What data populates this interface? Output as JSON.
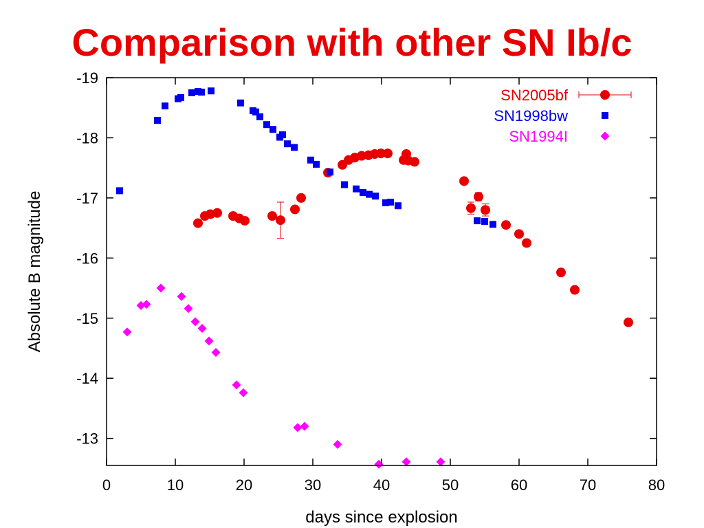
{
  "title": "Comparison with other SN Ib/c",
  "colors": {
    "title": "#e80000",
    "SN2005bf": "#e80000",
    "SN1998bw": "#0000ee",
    "SN1994I": "#ff00ff"
  },
  "chart_data": {
    "type": "scatter",
    "xlabel": "days since explosion",
    "ylabel": "Absolute B magnitude",
    "xlim": [
      0,
      80
    ],
    "ylim": [
      -12.55,
      -19
    ],
    "y_inverted": true,
    "xticks": [
      0,
      10,
      20,
      30,
      40,
      50,
      60,
      70,
      80
    ],
    "yticks": [
      -19,
      -18,
      -17,
      -16,
      -15,
      -14,
      -13
    ],
    "grid": false,
    "legend_position": "top-right",
    "series": [
      {
        "name": "SN2005bf",
        "marker": "circle",
        "color": "#e80000",
        "x": [
          13.3,
          14.3,
          15.1,
          16.1,
          18.4,
          19.3,
          20.1,
          24.1,
          25.3,
          27.4,
          28.3,
          32.2,
          34.3,
          35.2,
          36.1,
          37.1,
          38.1,
          39.0,
          39.9,
          40.9,
          43.2,
          43.6,
          43.9,
          44.8,
          52.0,
          53.0,
          54.1,
          55.1,
          58.1,
          60.0,
          61.1,
          66.1,
          68.1,
          75.9
        ],
        "y": [
          -16.58,
          -16.7,
          -16.73,
          -16.75,
          -16.7,
          -16.66,
          -16.62,
          -16.7,
          -16.63,
          -16.81,
          -17.0,
          -17.42,
          -17.55,
          -17.63,
          -17.67,
          -17.7,
          -17.71,
          -17.73,
          -17.74,
          -17.74,
          -17.63,
          -17.73,
          -17.62,
          -17.6,
          -17.28,
          -16.83,
          -17.02,
          -16.8,
          -16.55,
          -16.4,
          -16.25,
          -15.76,
          -15.47,
          -14.93
        ],
        "yerr": [
          0,
          0,
          0,
          0,
          0,
          0,
          0,
          0,
          0.3,
          0,
          0,
          0,
          0,
          0,
          0,
          0,
          0,
          0,
          0,
          0,
          0,
          0,
          0,
          0,
          0,
          0.1,
          0.07,
          0.1,
          0,
          0,
          0,
          0,
          0,
          0
        ]
      },
      {
        "name": "SN1998bw",
        "marker": "square",
        "color": "#0000ee",
        "x": [
          1.9,
          7.4,
          8.5,
          10.4,
          10.8,
          12.4,
          13.3,
          13.8,
          15.2,
          19.5,
          21.3,
          21.7,
          22.3,
          23.3,
          24.2,
          25.2,
          25.6,
          26.3,
          27.3,
          29.7,
          30.5,
          32.5,
          34.6,
          36.3,
          37.3,
          38.2,
          39.1,
          40.6,
          41.3,
          42.4,
          53.9,
          55.0,
          56.2
        ],
        "y": [
          -17.12,
          -18.29,
          -18.53,
          -18.65,
          -18.67,
          -18.75,
          -18.77,
          -18.76,
          -18.78,
          -18.58,
          -18.45,
          -18.43,
          -18.35,
          -18.22,
          -18.14,
          -18.01,
          -18.05,
          -17.9,
          -17.84,
          -17.63,
          -17.56,
          -17.43,
          -17.22,
          -17.15,
          -17.09,
          -17.06,
          -17.03,
          -16.92,
          -16.93,
          -16.87,
          -16.62,
          -16.61,
          -16.56
        ]
      },
      {
        "name": "SN1994I",
        "marker": "diamond",
        "color": "#ff00ff",
        "x": [
          3.0,
          5.0,
          5.8,
          7.9,
          10.9,
          11.9,
          12.9,
          13.9,
          14.9,
          15.9,
          18.9,
          19.9,
          27.8,
          28.8,
          33.6,
          39.6,
          43.6,
          48.6
        ],
        "y": [
          -14.77,
          -15.21,
          -15.23,
          -15.5,
          -15.36,
          -15.16,
          -14.94,
          -14.83,
          -14.62,
          -14.43,
          -13.89,
          -13.76,
          -13.18,
          -13.2,
          -12.9,
          -12.57,
          -12.61,
          -12.61
        ]
      }
    ]
  }
}
